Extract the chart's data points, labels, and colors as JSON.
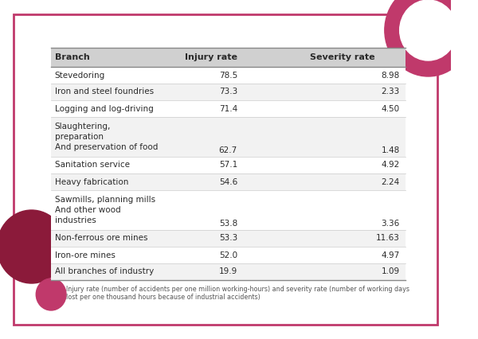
{
  "title_col1": "Branch",
  "title_col2": "Injury rate",
  "title_col3": "Severity rate",
  "rows": [
    {
      "branch": "Stevedoring",
      "lines": 1,
      "injury": "78.5",
      "severity": "8.98"
    },
    {
      "branch": "Iron and steel foundries",
      "lines": 1,
      "injury": "73.3",
      "severity": "2.33"
    },
    {
      "branch": "Logging and log-driving",
      "lines": 1,
      "injury": "71.4",
      "severity": "4.50"
    },
    {
      "branch": "Slaughtering,\npreparation\nAnd preservation of food",
      "lines": 3,
      "injury": "62.7",
      "severity": "1.48"
    },
    {
      "branch": "Sanitation service",
      "lines": 1,
      "injury": "57.1",
      "severity": "4.92"
    },
    {
      "branch": "Heavy fabrication",
      "lines": 1,
      "injury": "54.6",
      "severity": "2.24"
    },
    {
      "branch": "Sawmills, planning mills\nAnd other wood\nindustries",
      "lines": 3,
      "injury": "53.8",
      "severity": "3.36"
    },
    {
      "branch": "Non-ferrous ore mines",
      "lines": 1,
      "injury": "53.3",
      "severity": "11.63"
    },
    {
      "branch": "Iron-ore mines",
      "lines": 1,
      "injury": "52.0",
      "severity": "4.97"
    },
    {
      "branch": "All branches of industry",
      "lines": 1,
      "injury": "19.9",
      "severity": "1.09"
    }
  ],
  "footnote1": "Injury rate (number of accidents per one million working-hours) and severity rate (number of working days",
  "footnote2": "lost per one thousand hours because of industrial accidents)",
  "header_bg": "#d0d0d0",
  "row_bg_even": "#f7f7f7",
  "row_bg_odd": "#f7f7f7",
  "outer_bg": "#ffffff",
  "border_color": "#c0396b",
  "text_color": "#2a2a2a",
  "accent_pink": "#c0396b",
  "accent_dark": "#8b1a3a",
  "accent_light": "#e05080"
}
